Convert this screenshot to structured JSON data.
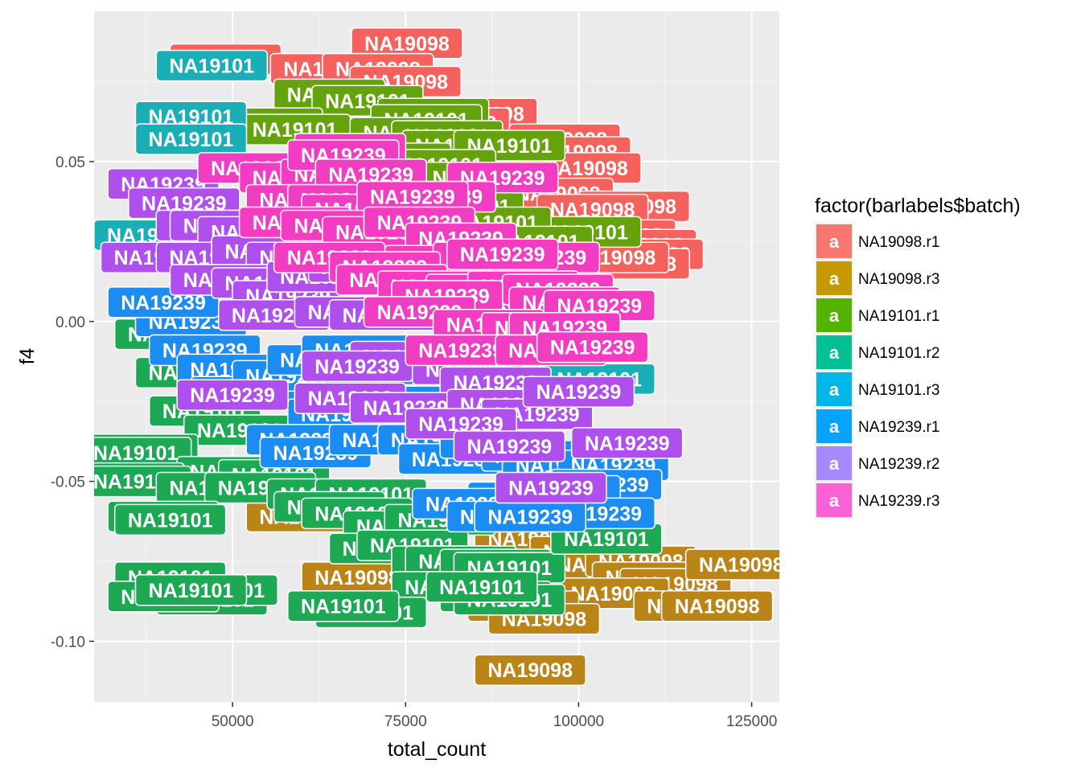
{
  "chart_data": {
    "type": "scatter",
    "xlabel": "total_count",
    "ylabel": "f4",
    "xlim": [
      30000,
      129000
    ],
    "ylim": [
      -0.119,
      0.097
    ],
    "x_ticks": [
      50000,
      75000,
      100000,
      125000
    ],
    "y_ticks": [
      0.05,
      0.0,
      -0.05,
      -0.1
    ],
    "x_tick_labels": [
      "50000",
      "75000",
      "100000",
      "125000"
    ],
    "y_tick_labels": [
      "0.05",
      "0.00",
      "-0.05",
      "-0.10"
    ],
    "grid": true,
    "legend_position": "right",
    "legend": {
      "title": "factor(barlabels$batch)",
      "key_glyph": "a",
      "entries": [
        {
          "name": "NA19098.r1",
          "color": "#F8766D"
        },
        {
          "name": "NA19098.r3",
          "color": "#C49A00"
        },
        {
          "name": "NA19101.r1",
          "color": "#53B400"
        },
        {
          "name": "NA19101.r2",
          "color": "#00C094"
        },
        {
          "name": "NA19101.r3",
          "color": "#00B6EB"
        },
        {
          "name": "NA19239.r1",
          "color": "#06A4FF"
        },
        {
          "name": "NA19239.r2",
          "color": "#A58AFF"
        },
        {
          "name": "NA19239.r3",
          "color": "#FB61D7"
        }
      ]
    },
    "series": [
      {
        "name": "NA19098.r1",
        "label": "NA19098",
        "color": "#F5625D",
        "points": [
          [
            75200,
            0.087
          ],
          [
            49000,
            0.082
          ],
          [
            63500,
            0.079
          ],
          [
            71000,
            0.079
          ],
          [
            75000,
            0.075
          ],
          [
            86000,
            0.065
          ],
          [
            82000,
            0.062
          ],
          [
            98000,
            0.057
          ],
          [
            99500,
            0.053
          ],
          [
            101000,
            0.048
          ],
          [
            97000,
            0.04
          ],
          [
            108000,
            0.036
          ],
          [
            102000,
            0.035
          ],
          [
            106000,
            0.027
          ],
          [
            109000,
            0.024
          ],
          [
            110000,
            0.021
          ],
          [
            108000,
            0.018
          ],
          [
            105000,
            0.02
          ]
        ]
      },
      {
        "name": "NA19098.r3",
        "label": "NA19098",
        "color": "#BB8416",
        "points": [
          [
            100000,
            -0.06
          ],
          [
            88000,
            -0.06
          ],
          [
            60000,
            -0.061
          ],
          [
            93000,
            -0.068
          ],
          [
            101000,
            -0.072
          ],
          [
            103000,
            -0.076
          ],
          [
            109000,
            -0.075
          ],
          [
            110000,
            -0.08
          ],
          [
            114000,
            -0.082
          ],
          [
            123500,
            -0.076
          ],
          [
            68000,
            -0.08
          ],
          [
            105000,
            -0.085
          ],
          [
            116000,
            -0.089
          ],
          [
            92000,
            -0.089
          ],
          [
            95000,
            -0.093
          ],
          [
            120000,
            -0.089
          ],
          [
            93000,
            -0.109
          ]
        ]
      },
      {
        "name": "NA19101.r1",
        "label": "NA19101",
        "color": "#65A30D",
        "points": [
          [
            64000,
            0.071
          ],
          [
            69500,
            0.069
          ],
          [
            79000,
            0.065
          ],
          [
            78000,
            0.063
          ],
          [
            55000,
            0.062
          ],
          [
            59000,
            0.06
          ],
          [
            75000,
            0.059
          ],
          [
            81000,
            0.058
          ],
          [
            82500,
            0.055
          ],
          [
            90000,
            0.055
          ],
          [
            73500,
            0.051
          ],
          [
            80000,
            0.049
          ],
          [
            85000,
            0.045
          ],
          [
            84000,
            0.036
          ],
          [
            101000,
            0.028
          ],
          [
            88000,
            0.031
          ],
          [
            94000,
            0.025
          ]
        ]
      },
      {
        "name": "NA19101.r2",
        "label": "NA19101",
        "color": "#1DA854",
        "points": [
          [
            41000,
            -0.004
          ],
          [
            44000,
            -0.016
          ],
          [
            50000,
            -0.016
          ],
          [
            46000,
            -0.028
          ],
          [
            51000,
            -0.034
          ],
          [
            37000,
            -0.04
          ],
          [
            36000,
            -0.041
          ],
          [
            50000,
            -0.047
          ],
          [
            56000,
            -0.048
          ],
          [
            35000,
            -0.049
          ],
          [
            36000,
            -0.05
          ],
          [
            47000,
            -0.052
          ],
          [
            54000,
            -0.052
          ],
          [
            63000,
            -0.054
          ],
          [
            70000,
            -0.054
          ],
          [
            40000,
            -0.061
          ],
          [
            41000,
            -0.062
          ],
          [
            64000,
            -0.058
          ],
          [
            68000,
            -0.06
          ],
          [
            74000,
            -0.064
          ],
          [
            80000,
            -0.062
          ],
          [
            72000,
            -0.071
          ],
          [
            76000,
            -0.07
          ],
          [
            81000,
            -0.075
          ],
          [
            83000,
            -0.075
          ],
          [
            88000,
            -0.076
          ],
          [
            90000,
            -0.077
          ],
          [
            104000,
            -0.068
          ],
          [
            81000,
            -0.083
          ],
          [
            88000,
            -0.086
          ],
          [
            90000,
            -0.087
          ],
          [
            86000,
            -0.083
          ],
          [
            47000,
            -0.087
          ],
          [
            41000,
            -0.08
          ],
          [
            48500,
            -0.084
          ],
          [
            70000,
            -0.091
          ],
          [
            66000,
            -0.089
          ],
          [
            40000,
            -0.086
          ],
          [
            44000,
            -0.084
          ]
        ]
      },
      {
        "name": "NA19101.r3",
        "label": "NA19101",
        "color": "#1AAEB7",
        "points": [
          [
            47000,
            0.08
          ],
          [
            44000,
            0.064
          ],
          [
            44000,
            0.057
          ],
          [
            103000,
            -0.018
          ],
          [
            38000,
            0.027
          ]
        ]
      },
      {
        "name": "NA19239.r1",
        "label": "NA19239",
        "color": "#1B8DF2",
        "points": [
          [
            44000,
            0.0
          ],
          [
            40000,
            0.006
          ],
          [
            46000,
            -0.009
          ],
          [
            50000,
            -0.015
          ],
          [
            52000,
            -0.022
          ],
          [
            58000,
            -0.017
          ],
          [
            63000,
            -0.012
          ],
          [
            68000,
            -0.009
          ],
          [
            71000,
            -0.015
          ],
          [
            75000,
            -0.025
          ],
          [
            66000,
            -0.029
          ],
          [
            60000,
            -0.037
          ],
          [
            62000,
            -0.041
          ],
          [
            72000,
            -0.037
          ],
          [
            79000,
            -0.037
          ],
          [
            82000,
            -0.043
          ],
          [
            88000,
            -0.038
          ],
          [
            94000,
            -0.042
          ],
          [
            97000,
            -0.045
          ],
          [
            105000,
            -0.045
          ],
          [
            104000,
            -0.051
          ],
          [
            98000,
            -0.053
          ],
          [
            92000,
            -0.055
          ],
          [
            84000,
            -0.057
          ],
          [
            103000,
            -0.06
          ],
          [
            89000,
            -0.061
          ],
          [
            93000,
            -0.061
          ]
        ]
      },
      {
        "name": "NA19239.r2",
        "label": "NA19239",
        "color": "#AF4FEE",
        "points": [
          [
            40000,
            0.043
          ],
          [
            43000,
            0.037
          ],
          [
            47000,
            0.03
          ],
          [
            49000,
            0.03
          ],
          [
            53000,
            0.028
          ],
          [
            39000,
            0.02
          ],
          [
            47000,
            0.02
          ],
          [
            55000,
            0.022
          ],
          [
            60000,
            0.02
          ],
          [
            49000,
            0.013
          ],
          [
            55000,
            0.012
          ],
          [
            58000,
            0.008
          ],
          [
            63000,
            0.014
          ],
          [
            69000,
            0.017
          ],
          [
            77000,
            0.015
          ],
          [
            56000,
            0.002
          ],
          [
            67000,
            0.003
          ],
          [
            72000,
            0.002
          ],
          [
            85000,
            0.005
          ],
          [
            96000,
            -0.003
          ],
          [
            98000,
            -0.006
          ],
          [
            75000,
            -0.011
          ],
          [
            68000,
            -0.014
          ],
          [
            84000,
            -0.015
          ],
          [
            88000,
            -0.019
          ],
          [
            50000,
            -0.023
          ],
          [
            67000,
            -0.024
          ],
          [
            75000,
            -0.027
          ],
          [
            89000,
            -0.026
          ],
          [
            94000,
            -0.029
          ],
          [
            83000,
            -0.032
          ],
          [
            100000,
            -0.022
          ],
          [
            90000,
            -0.039
          ],
          [
            107000,
            -0.038
          ],
          [
            96000,
            -0.052
          ]
        ]
      },
      {
        "name": "NA19239.r3",
        "label": "NA19239",
        "color": "#F23CC2",
        "points": [
          [
            53000,
            0.048
          ],
          [
            59000,
            0.045
          ],
          [
            65000,
            0.046
          ],
          [
            67000,
            0.054
          ],
          [
            66000,
            0.052
          ],
          [
            89000,
            0.045
          ],
          [
            70000,
            0.046
          ],
          [
            77000,
            0.039
          ],
          [
            80000,
            0.039
          ],
          [
            60000,
            0.038
          ],
          [
            66000,
            0.038
          ],
          [
            68000,
            0.035
          ],
          [
            76000,
            0.039
          ],
          [
            59000,
            0.031
          ],
          [
            65000,
            0.03
          ],
          [
            71000,
            0.028
          ],
          [
            77000,
            0.031
          ],
          [
            83000,
            0.026
          ],
          [
            80000,
            0.019
          ],
          [
            87000,
            0.02
          ],
          [
            92000,
            0.018
          ],
          [
            64000,
            0.02
          ],
          [
            72000,
            0.017
          ],
          [
            95000,
            0.02
          ],
          [
            89000,
            0.021
          ],
          [
            73000,
            0.013
          ],
          [
            79000,
            0.011
          ],
          [
            86000,
            0.01
          ],
          [
            92000,
            0.011
          ],
          [
            97000,
            0.01
          ],
          [
            81000,
            0.008
          ],
          [
            98000,
            0.006
          ],
          [
            103000,
            0.005
          ],
          [
            77000,
            0.003
          ],
          [
            87000,
            -0.001
          ],
          [
            94000,
            -0.002
          ],
          [
            98000,
            -0.002
          ],
          [
            83000,
            -0.009
          ],
          [
            96000,
            -0.009
          ],
          [
            102000,
            -0.008
          ]
        ]
      }
    ]
  }
}
